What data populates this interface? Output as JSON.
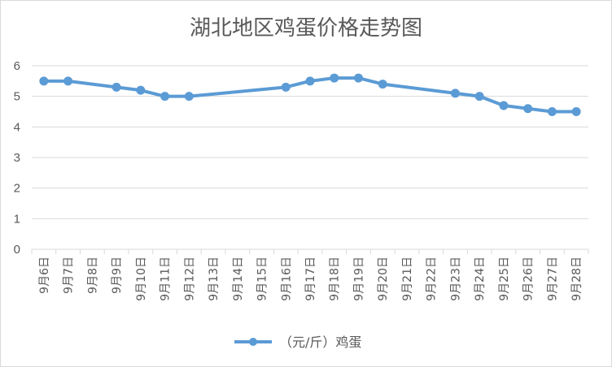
{
  "chart_data": {
    "type": "line",
    "title": "湖北地区鸡蛋价格走势图",
    "xlabel": "",
    "ylabel": "",
    "ylim": [
      0,
      6
    ],
    "y_ticks": [
      "0",
      "1",
      "2",
      "3",
      "4",
      "5",
      "6"
    ],
    "categories": [
      "9月6日",
      "9月7日",
      "9月8日",
      "9月9日",
      "9月10日",
      "9月11日",
      "9月12日",
      "9月13日",
      "9月14日",
      "9月15日",
      "9月16日",
      "9月17日",
      "9月18日",
      "9月19日",
      "9月20日",
      "9月21日",
      "9月22日",
      "9月23日",
      "9月24日",
      "9月25日",
      "9月26日",
      "9月27日",
      "9月28日"
    ],
    "series": [
      {
        "name": "（元/斤）鸡蛋",
        "color": "#5b9bd5",
        "values": [
          5.5,
          5.5,
          null,
          5.3,
          5.2,
          5.0,
          5.0,
          null,
          null,
          null,
          5.3,
          5.5,
          5.6,
          5.6,
          5.4,
          null,
          null,
          5.1,
          5.0,
          4.7,
          4.6,
          4.5,
          4.5
        ]
      }
    ],
    "grid": true,
    "legend": "bottom"
  }
}
